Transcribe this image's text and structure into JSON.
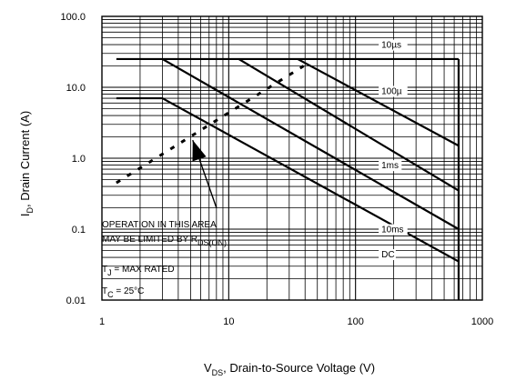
{
  "chart_data": {
    "type": "line",
    "x_scale": "log",
    "y_scale": "log",
    "xlim": [
      1,
      1000
    ],
    "ylim": [
      0.01,
      100
    ],
    "grid": true,
    "xlabel": {
      "main": "V",
      "sub": "DS",
      "rest": ", Drain-to-Source Voltage (V)"
    },
    "ylabel": {
      "main": "I",
      "sub": "D",
      "rest": ", Drain Current (A)"
    },
    "x_ticks": [
      {
        "value": 1,
        "label": "1"
      },
      {
        "value": 10,
        "label": "10"
      },
      {
        "value": 100,
        "label": "100"
      },
      {
        "value": 1000,
        "label": "1000"
      }
    ],
    "y_ticks": [
      {
        "value": 0.01,
        "label": "0.01"
      },
      {
        "value": 0.1,
        "label": "0.1"
      },
      {
        "value": 1,
        "label": "1.0"
      },
      {
        "value": 10,
        "label": "10.0"
      },
      {
        "value": 100,
        "label": "100.0"
      }
    ],
    "rds_on_limit": [
      [
        1.3,
        0.45
      ],
      [
        39,
        20
      ]
    ],
    "series": [
      {
        "name": "10µs",
        "points": [
          [
            1.3,
            25
          ],
          [
            650,
            25
          ]
        ]
      },
      {
        "name": "100µ",
        "points": [
          [
            35,
            25
          ],
          [
            650,
            1.5
          ]
        ]
      },
      {
        "name": "1ms",
        "points": [
          [
            12,
            25
          ],
          [
            650,
            0.35
          ]
        ]
      },
      {
        "name": "10ms",
        "points": [
          [
            3,
            25
          ],
          [
            650,
            0.1
          ]
        ]
      },
      {
        "name": "DC",
        "points": [
          [
            1.3,
            7
          ],
          [
            3,
            7
          ],
          [
            650,
            0.035
          ]
        ]
      }
    ],
    "vertical_limit": {
      "x": 650,
      "ylim": [
        0.01,
        25
      ]
    },
    "curve_labels": [
      {
        "key": "us10",
        "value_x": 160,
        "value_y": 36
      },
      {
        "key": "us100",
        "value_x": 160,
        "value_y": 8
      },
      {
        "key": "ms1",
        "value_x": 160,
        "value_y": 0.72
      },
      {
        "key": "ms10",
        "value_x": 160,
        "value_y": 0.09
      },
      {
        "key": "dc",
        "value_x": 160,
        "value_y": 0.04
      }
    ],
    "annotation_arrow": {
      "from": [
        8,
        0.2
      ],
      "to": [
        5.2,
        1.8
      ]
    }
  },
  "labels": {
    "us10": "10µs",
    "us100": "100µ",
    "ms1": "1ms",
    "ms10": "10ms",
    "dc": "DC"
  },
  "annotations": {
    "line1": "OPERATION IN THIS AREA",
    "line2": "MAY BE LIMITED BY R",
    "line2_sub": "DS(ON)",
    "tj_main": "T",
    "tj_sub": "J",
    "tj_rest": " = MAX RATED",
    "tc_main": "T",
    "tc_sub": "C",
    "tc_rest": " = 25°C"
  }
}
